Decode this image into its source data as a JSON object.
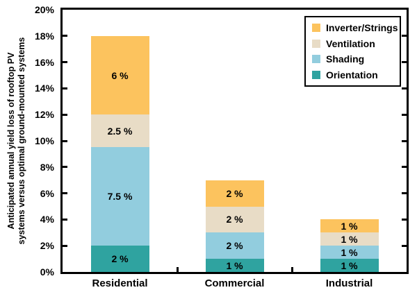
{
  "chart_data": {
    "type": "bar",
    "stacked": true,
    "categories": [
      "Residential",
      "Commercial",
      "Industrial"
    ],
    "series": [
      {
        "name": "Orientation",
        "color": "#2FA3A0",
        "values": [
          2,
          1,
          1
        ],
        "labels": [
          "2 %",
          "1 %",
          "1 %"
        ]
      },
      {
        "name": "Shading",
        "color": "#92CDDE",
        "values": [
          7.5,
          2,
          1
        ],
        "labels": [
          "7.5 %",
          "2 %",
          "1 %"
        ]
      },
      {
        "name": "Ventilation",
        "color": "#E8DCC6",
        "values": [
          2.5,
          2,
          1
        ],
        "labels": [
          "2.5 %",
          "2 %",
          "1 %"
        ]
      },
      {
        "name": "Inverter/Strings",
        "color": "#FCC35E",
        "values": [
          6,
          2,
          1
        ],
        "labels": [
          "6 %",
          "2 %",
          "1 %"
        ]
      }
    ],
    "totals": [
      18,
      7,
      4
    ],
    "ylabel_lines": [
      "Anticipated annual yield loss of rooftop PV",
      "systems versus optimal ground-mounted systems"
    ],
    "xlabel": "",
    "title": "",
    "ylim": [
      0,
      20
    ],
    "ytick_interval": 2,
    "ytick_labels": [
      "0%",
      "2%",
      "4%",
      "6%",
      "8%",
      "10%",
      "12%",
      "14%",
      "16%",
      "18%",
      "20%"
    ],
    "grid": false,
    "legend_position": "top-right",
    "legend_order": [
      "Inverter/Strings",
      "Ventilation",
      "Shading",
      "Orientation"
    ],
    "axis_color": "#000000",
    "background_color": "#ffffff"
  }
}
